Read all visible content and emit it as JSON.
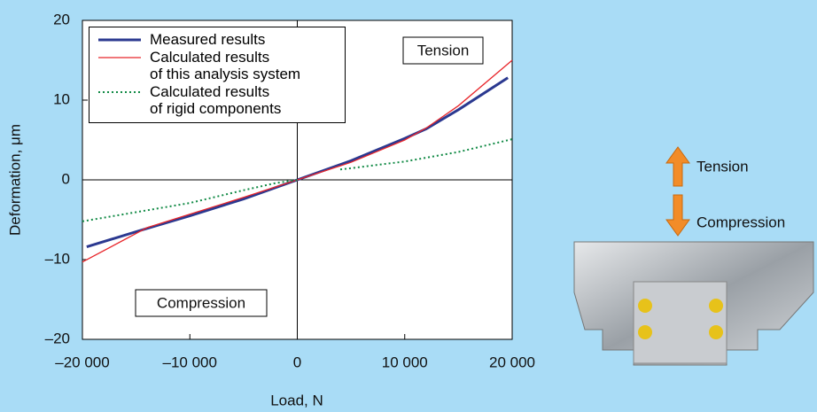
{
  "chart_data": {
    "type": "line",
    "xlabel": "Load, N",
    "ylabel": "Deformation, μm",
    "xlim": [
      -20000,
      20000
    ],
    "ylim": [
      -20,
      20
    ],
    "xticks": [
      {
        "value": -20000,
        "label": "–20 000"
      },
      {
        "value": -10000,
        "label": "–10 000"
      },
      0,
      {
        "value": 10000,
        "label": "10 000"
      },
      {
        "value": 20000,
        "label": "20 000"
      }
    ],
    "yticks": [
      {
        "value": -20,
        "label": "–20"
      },
      {
        "value": -10,
        "label": "–10"
      },
      0,
      10,
      20
    ],
    "annotations": [
      "Tension",
      "Compression"
    ],
    "series": [
      {
        "name": "Measured results",
        "color": "#2b3990",
        "width": 3,
        "dash": "none",
        "x": [
          -19600,
          -15000,
          -10000,
          -5000,
          0,
          5000,
          10000,
          12000,
          15000,
          19600
        ],
        "values": [
          -8.4,
          -6.5,
          -4.5,
          -2.4,
          0,
          2.4,
          5.2,
          6.4,
          8.8,
          12.8
        ]
      },
      {
        "name": "Calculated results\nof this analysis system",
        "color": "#e8262b",
        "width": 1.3,
        "dash": "none",
        "x": [
          -20000,
          -14000,
          -10000,
          -5000,
          0,
          5000,
          10000,
          12000,
          15000,
          20000
        ],
        "values": [
          -10.3,
          -6.0,
          -4.3,
          -2.2,
          0,
          2.2,
          5.0,
          6.5,
          9.3,
          15.0
        ]
      },
      {
        "name": "Calculated results\nof rigid components",
        "color": "#118a45",
        "width": 2,
        "dash": "2,3",
        "x": [
          -20000,
          -10000,
          -5000,
          -2000,
          0,
          null,
          4000,
          10000,
          15000,
          20000
        ],
        "values": [
          -5.2,
          -2.9,
          -1.3,
          -0.4,
          0,
          null,
          1.3,
          2.3,
          3.5,
          5.1
        ]
      }
    ]
  },
  "figure": {
    "labels": [
      "Tension",
      "Compression"
    ]
  }
}
